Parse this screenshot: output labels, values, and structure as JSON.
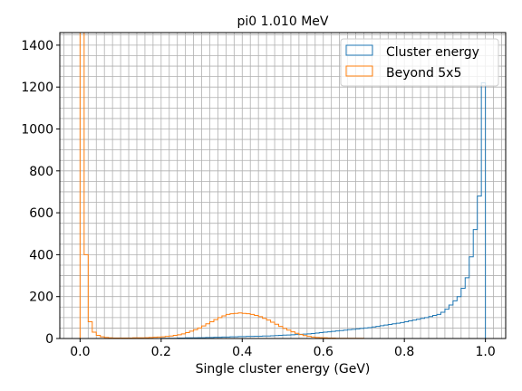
{
  "chart_data": {
    "type": "histogram",
    "title": "pi0 1.010 MeV",
    "xlabel": "Single cluster energy (GeV)",
    "ylabel": "",
    "xlim": [
      -0.05,
      1.05
    ],
    "ylim": [
      0,
      1460
    ],
    "x_ticks": [
      0.0,
      0.2,
      0.4,
      0.6,
      0.8,
      1.0
    ],
    "x_tick_labels": [
      "0.0",
      "0.2",
      "0.4",
      "0.6",
      "0.8",
      "1.0"
    ],
    "y_ticks": [
      0,
      200,
      400,
      600,
      800,
      1000,
      1200,
      1400
    ],
    "y_tick_labels": [
      "0",
      "200",
      "400",
      "600",
      "800",
      "1000",
      "1200",
      "1400"
    ],
    "grid": true,
    "minor_grid": true,
    "legend_position": "top-right",
    "bin_width": 0.01,
    "series": [
      {
        "name": "Cluster energy",
        "color": "#1f77b4",
        "bin_start": 0.0,
        "values": [
          0,
          0,
          0,
          0,
          0,
          0,
          0,
          0,
          0,
          0,
          0,
          0,
          0,
          0,
          0,
          0,
          0,
          0,
          0,
          0,
          1,
          1,
          1,
          1,
          2,
          2,
          3,
          3,
          3,
          4,
          4,
          5,
          5,
          6,
          6,
          7,
          7,
          8,
          8,
          9,
          9,
          10,
          10,
          11,
          11,
          12,
          12,
          13,
          14,
          15,
          16,
          17,
          18,
          19,
          20,
          21,
          22,
          24,
          26,
          28,
          30,
          32,
          34,
          36,
          38,
          40,
          42,
          44,
          46,
          48,
          50,
          52,
          55,
          58,
          61,
          64,
          67,
          70,
          73,
          76,
          80,
          84,
          88,
          92,
          96,
          100,
          105,
          110,
          115,
          125,
          140,
          160,
          180,
          200,
          240,
          290,
          390,
          520,
          680,
          1220
        ],
        "extra_bins": [
          {
            "x": 0.99,
            "value": 1220
          }
        ]
      },
      {
        "name": "Beyond 5x5",
        "color": "#ff7f0e",
        "bin_start": 0.0,
        "values": [
          1460,
          400,
          80,
          30,
          15,
          8,
          5,
          3,
          2,
          2,
          2,
          2,
          2,
          3,
          3,
          3,
          4,
          5,
          6,
          7,
          8,
          10,
          12,
          15,
          18,
          22,
          28,
          35,
          42,
          50,
          60,
          70,
          80,
          90,
          100,
          108,
          115,
          118,
          120,
          122,
          120,
          118,
          115,
          110,
          104,
          96,
          88,
          78,
          68,
          58,
          48,
          40,
          32,
          25,
          19,
          14,
          10,
          7,
          5,
          4,
          3,
          2,
          2,
          1,
          1,
          1,
          1,
          1,
          1,
          1,
          0,
          0,
          0,
          0,
          0,
          0,
          0,
          0,
          0,
          0,
          0,
          0,
          0,
          0,
          0,
          0,
          0,
          0,
          0,
          0,
          0,
          0,
          0,
          0,
          0,
          0,
          0,
          0,
          0,
          0
        ]
      }
    ]
  }
}
